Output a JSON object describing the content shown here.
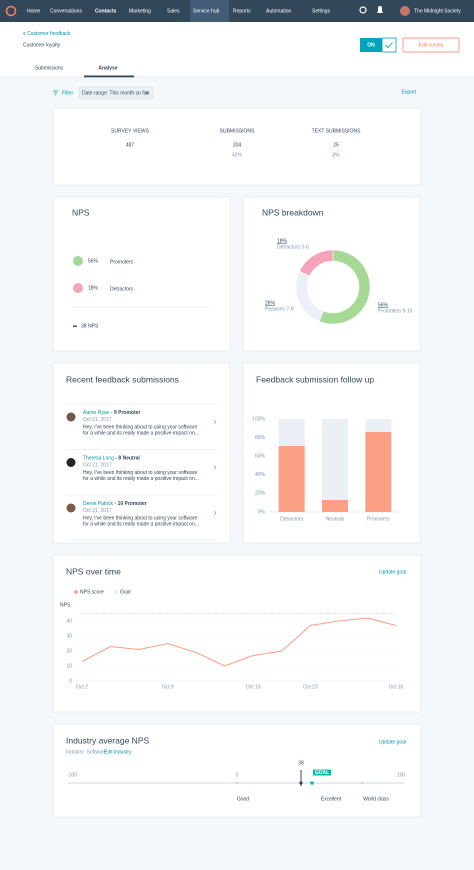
{
  "nav": {
    "items": [
      "Home",
      "Conversations",
      "Contacts",
      "Marketing",
      "Sales",
      "Service hub",
      "Reports",
      "Automation",
      "Settings"
    ],
    "account": "The Midnight Society"
  },
  "header": {
    "breadcrumb": "Customer feedback",
    "title": "Customer loyalty",
    "toggle": "ON",
    "button": "Edit survey"
  },
  "tabs": [
    "Submissions",
    "Analyse"
  ],
  "filter": {
    "label": "Filter",
    "chip": "Date range: This month so far",
    "export": "Export"
  },
  "stats": [
    {
      "label": "SURVEY VIEWS",
      "value": "487"
    },
    {
      "label": "SUBMISSIONS",
      "value": "204",
      "sub": "42%"
    },
    {
      "label": "TEXT SUBMISSIONS",
      "value": "25",
      "sub": "8%"
    }
  ],
  "nps": {
    "title": "NPS",
    "promoters": "56%",
    "promoters_label": "Promoters",
    "detractors": "18%",
    "detractors_label": "Detractors",
    "score": "38 NPS"
  },
  "feedback": {
    "title": "Recent feedback submissions",
    "entries": [
      {
        "name": "Aaron Ryan",
        "score": "- 9 Promoter",
        "date": "Oct 21, 2017",
        "lines": [
          "Hey, I've been thinking about to using your software",
          "for a while and its really made a positive impact on..."
        ]
      },
      {
        "name": "Theresa Long",
        "score": "- 8 Neutral",
        "date": "Oct 21, 2017",
        "lines": [
          "Hey, I've been thinking about to using your software",
          "for a while and its really made a positive impact on..."
        ]
      },
      {
        "name": "Derek Patrick",
        "score": "- 10 Promoter",
        "date": "Oct 21, 2017",
        "lines": [
          "Hey, I've been thinking about to using your software",
          "for a while and its really made a positive impact on..."
        ]
      }
    ]
  },
  "industry": {
    "title": "Industry average NPS",
    "link": "Update goal",
    "industry": "Industry: Software",
    "edit": "Edit industry",
    "scale": [
      "-100",
      "0",
      "100"
    ],
    "marker": "38",
    "goal": "GOAL",
    "bands": [
      "Good",
      "Excellent",
      "World class"
    ]
  },
  "chart_data": [
    {
      "type": "pie",
      "title": "NPS breakdown",
      "categories": [
        "Detractors 0-6",
        "Passives 7-8",
        "Promoters 9-10"
      ],
      "values": [
        18,
        26,
        56
      ],
      "value_labels": [
        "18%",
        "26%",
        "56%"
      ],
      "colors": [
        "#f5a3b8",
        "#eaf0f6",
        "#a6d996"
      ]
    },
    {
      "type": "bar",
      "title": "Feedback submission follow up",
      "categories": [
        "Detractors",
        "Neutrals",
        "Promoters"
      ],
      "series": [
        {
          "color": "#fb9f85",
          "values": [
            71,
            13,
            86
          ]
        },
        {
          "color": "#eaf0f6",
          "values": [
            29,
            87,
            14
          ]
        }
      ],
      "ylim": [
        0,
        100
      ],
      "yticks": [
        {
          "value": 0,
          "label": "0%"
        },
        {
          "value": 20,
          "label": "20%"
        },
        {
          "value": 40,
          "label": "40%"
        },
        {
          "value": 60,
          "label": "60%"
        },
        {
          "value": 80,
          "label": "80%"
        },
        {
          "value": 100,
          "label": "100%"
        }
      ],
      "grid": false
    },
    {
      "type": "line",
      "title": "NPS over time",
      "link": "Update goal",
      "y_label": "NPS",
      "categories": [
        "Oct 2",
        null,
        null,
        "Oct 9",
        null,
        null,
        "Oct 16",
        null,
        "Oct 23",
        null,
        null,
        "Oct 30"
      ],
      "series": [
        {
          "name": "NPS score",
          "color": "#fb9f85",
          "values": [
            13,
            23,
            21,
            25,
            19,
            10,
            17,
            20,
            37,
            40,
            42,
            37
          ]
        },
        {
          "name": "Goal",
          "color": "#cbd6e2",
          "style": "dashed",
          "values": [
            45,
            45,
            45,
            45,
            45,
            45,
            45,
            45,
            45,
            45,
            45,
            45
          ]
        }
      ],
      "ylim": [
        0,
        50
      ],
      "yticks": [
        0,
        10,
        20,
        30,
        40
      ],
      "grid": true
    }
  ]
}
